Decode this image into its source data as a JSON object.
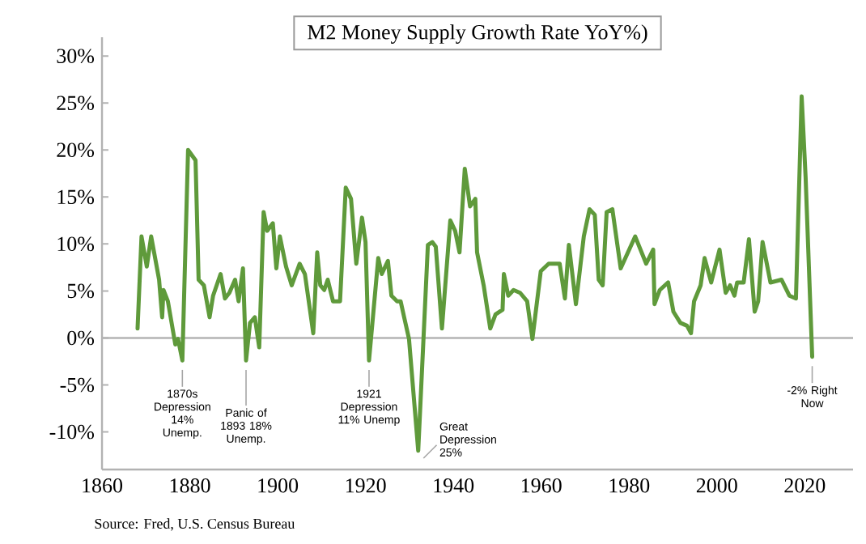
{
  "chart_data": {
    "type": "line",
    "x": [
      1868.1,
      1869,
      1870.2,
      1871.2,
      1873,
      1873.7,
      1874,
      1875,
      1876.7,
      1877.3,
      1878.3,
      1879.6,
      1881.3,
      1882,
      1883.2,
      1884.5,
      1885.3,
      1887,
      1888,
      1889,
      1890.3,
      1891.1,
      1892.1,
      1892.8,
      1893.7,
      1894.8,
      1895.8,
      1896.8,
      1897.6,
      1898.9,
      1899.7,
      1900.5,
      1901.9,
      1903.2,
      1905,
      1906.2,
      1908.1,
      1909,
      1909.7,
      1910.6,
      1911.4,
      1912.6,
      1914.2,
      1915.5,
      1916.7,
      1917.9,
      1919.2,
      1920,
      1920.8,
      1922.9,
      1923.7,
      1925.1,
      1925.9,
      1927.2,
      1928,
      1928.8,
      1929.9,
      1932,
      1934.2,
      1935.2,
      1936,
      1937.4,
      1939.3,
      1940.4,
      1941.4,
      1942.6,
      1943.8,
      1945,
      1945.4,
      1946.9,
      1948.4,
      1949.6,
      1951.2,
      1951.5,
      1952.5,
      1953.7,
      1955.2,
      1956.8,
      1958,
      1959.9,
      1961.7,
      1964.2,
      1965.4,
      1966.3,
      1967.9,
      1969.7,
      1971,
      1972.2,
      1973.1,
      1974,
      1974.9,
      1976.2,
      1978.1,
      1981.4,
      1983.9,
      1985.5,
      1985.8,
      1987,
      1988.9,
      1990.1,
      1991.7,
      1993.2,
      1994.1,
      1994.8,
      1996.3,
      1997.2,
      1998.7,
      2000.6,
      2002,
      2003,
      2004,
      2004.6,
      2006.1,
      2007.3,
      2008.6,
      2009.4,
      2010.4,
      2012.2,
      2014.7,
      2016.5,
      2018,
      2019.3,
      2020.2,
      2021.7
    ],
    "series": [
      {
        "name": "M2 Money Supply Growth Rate YoY%)",
        "color": "#5f9a3b",
        "values": [
          1.0,
          10.8,
          7.6,
          10.8,
          6.2,
          2.2,
          5.1,
          3.9,
          -0.7,
          -0.1,
          -2.4,
          20,
          18.9,
          6.2,
          5.6,
          2.2,
          4.5,
          6.8,
          4.2,
          4.8,
          6.2,
          3.9,
          7.4,
          -2.4,
          1.6,
          2.2,
          -1.0,
          13.4,
          11.4,
          12.2,
          7.4,
          10.8,
          7.6,
          5.6,
          7.9,
          6.8,
          0.5,
          9.1,
          5.6,
          5.1,
          6.2,
          3.9,
          3.9,
          16,
          14.8,
          7.9,
          12.8,
          10.2,
          -2.4,
          8.5,
          6.8,
          8.2,
          4.5,
          3.9,
          3.9,
          2.2,
          -0.1,
          -12,
          9.9,
          10.2,
          9.7,
          1.0,
          12.5,
          11.4,
          9.1,
          18,
          14,
          14.8,
          9.1,
          5.6,
          1.0,
          2.5,
          3.0,
          6.8,
          4.5,
          5.1,
          4.8,
          3.9,
          -0.1,
          7.1,
          7.9,
          7.9,
          4.2,
          9.9,
          3.6,
          10.8,
          13.7,
          13.1,
          6.2,
          5.6,
          13.4,
          13.7,
          7.4,
          10.8,
          7.9,
          9.4,
          3.6,
          5.1,
          5.9,
          2.8,
          1.6,
          1.3,
          0.5,
          3.9,
          5.6,
          8.5,
          5.9,
          9.4,
          4.8,
          5.6,
          4.5,
          5.9,
          5.9,
          10.5,
          2.8,
          3.9,
          10.2,
          5.9,
          6.2,
          4.5,
          4.2,
          25.7,
          17.1,
          -2
        ]
      }
    ],
    "xlim": [
      1860,
      2031
    ],
    "ylim": [
      -14,
      32
    ],
    "xticks": [
      1860,
      1880,
      1900,
      1920,
      1940,
      1960,
      1980,
      2000,
      2020
    ],
    "yticks": [
      {
        "value": -10,
        "label": "-10%"
      },
      {
        "value": -5,
        "label": "-5%"
      },
      {
        "value": 0,
        "label": "0%"
      },
      {
        "value": 5,
        "label": "5%"
      },
      {
        "value": 10,
        "label": "10%"
      },
      {
        "value": 15,
        "label": "15%"
      },
      {
        "value": 20,
        "label": "20%"
      },
      {
        "value": 25,
        "label": "25%"
      },
      {
        "value": 30,
        "label": "30%"
      }
    ],
    "ref_lines": [
      {
        "axis": "y",
        "value": 0,
        "color": "#b4b4b4"
      }
    ],
    "legend": "top",
    "grid": false,
    "marker": "none",
    "line_style": "solid",
    "annotations": [
      {
        "text": "1870s Depression 14% Unemp.",
        "x": 1878.3,
        "y": -2.4
      },
      {
        "text": "Panic of 1893 18% Unemp.",
        "x": 1892.8,
        "y": -2.4
      },
      {
        "text": "1921 Depression 11% Unemp",
        "x": 1920.8,
        "y": -2.4
      },
      {
        "text": "Great Depression 25%",
        "x": 1932,
        "y": -12
      },
      {
        "text": "-2% Right Now",
        "x": 2021.7,
        "y": -2
      },
      "Source:  Fred, U.S. Census Bureau"
    ]
  }
}
